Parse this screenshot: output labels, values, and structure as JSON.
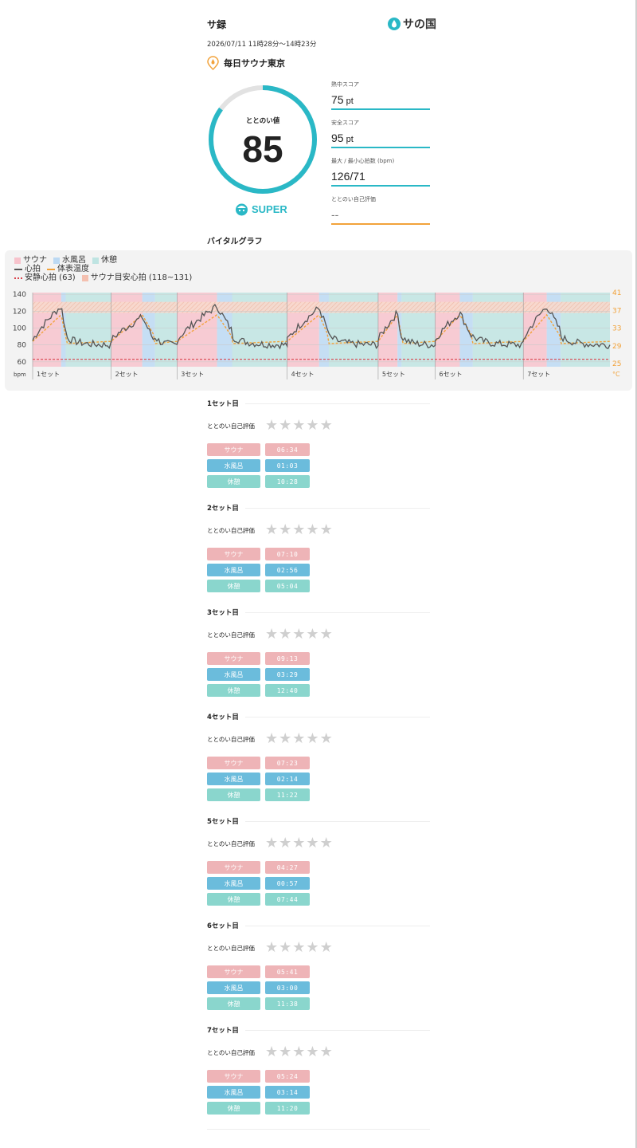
{
  "header": {
    "title": "サ録",
    "brand_name": "サの国",
    "date_range": "2026/07/11 11時28分～14時23分",
    "facility": "毎日サウナ東京"
  },
  "score": {
    "label": "ととのい値",
    "value": "85",
    "fraction": 0.85,
    "rank": "SUPER"
  },
  "metrics": [
    {
      "label": "熱中スコア",
      "value": "75",
      "unit": "pt"
    },
    {
      "label": "安全スコア",
      "value": "95",
      "unit": "pt"
    },
    {
      "label": "最大 / 最小心拍数 (bpm)",
      "value": "126/71",
      "unit": ""
    },
    {
      "label": "ととのい自己評価",
      "value": "--",
      "unit": ""
    }
  ],
  "vital": {
    "section_title": "バイタルグラフ",
    "legend": {
      "sauna": "サウナ",
      "water": "水風呂",
      "rest": "休憩",
      "hr": "心拍",
      "temp": "体表温度",
      "resting": "安静心拍 (63)",
      "safe": "サウナ目安心拍 (118~131)"
    },
    "y_left_ticks": [
      "140",
      "120",
      "100",
      "80",
      "60"
    ],
    "y_left_unit": "bpm",
    "y_right_ticks": [
      "41",
      "37",
      "33",
      "29",
      "25"
    ],
    "y_right_unit": "°C",
    "set_labels": [
      "1セット",
      "2セット",
      "3セット",
      "4セット",
      "5セット",
      "6セット",
      "7セット"
    ],
    "colors": {
      "sauna": "#f7c3cc",
      "water": "#bcd9f3",
      "rest": "#bfe4e2",
      "hr": "#555555",
      "temp": "#f2a23a",
      "resting": "#d9434d",
      "safe": "#f4c0b0"
    }
  },
  "chart_data": {
    "type": "line",
    "resting_hr": 63,
    "safe_range": [
      118,
      131
    ],
    "ylim_left": [
      58,
      142
    ],
    "ylim_right": [
      25,
      41
    ],
    "segments_min": [
      [
        6.57,
        1.05,
        10.47
      ],
      [
        7.17,
        2.93,
        5.07
      ],
      [
        9.22,
        3.48,
        12.67
      ],
      [
        7.38,
        2.23,
        11.37
      ],
      [
        4.45,
        0.95,
        7.73
      ],
      [
        5.68,
        3.0,
        11.63
      ],
      [
        5.4,
        3.23,
        11.33
      ]
    ]
  },
  "sets": [
    {
      "title": "1セット目",
      "rating_label": "ととのい自己評価",
      "sauna_label": "サウナ",
      "sauna": "06:34",
      "water_label": "水風呂",
      "water": "01:03",
      "rest_label": "休憩",
      "rest": "10:28"
    },
    {
      "title": "2セット目",
      "rating_label": "ととのい自己評価",
      "sauna_label": "サウナ",
      "sauna": "07:10",
      "water_label": "水風呂",
      "water": "02:56",
      "rest_label": "休憩",
      "rest": "05:04"
    },
    {
      "title": "3セット目",
      "rating_label": "ととのい自己評価",
      "sauna_label": "サウナ",
      "sauna": "09:13",
      "water_label": "水風呂",
      "water": "03:29",
      "rest_label": "休憩",
      "rest": "12:40"
    },
    {
      "title": "4セット目",
      "rating_label": "ととのい自己評価",
      "sauna_label": "サウナ",
      "sauna": "07:23",
      "water_label": "水風呂",
      "water": "02:14",
      "rest_label": "休憩",
      "rest": "11:22"
    },
    {
      "title": "5セット目",
      "rating_label": "ととのい自己評価",
      "sauna_label": "サウナ",
      "sauna": "04:27",
      "water_label": "水風呂",
      "water": "00:57",
      "rest_label": "休憩",
      "rest": "07:44"
    },
    {
      "title": "6セット目",
      "rating_label": "ととのい自己評価",
      "sauna_label": "サウナ",
      "sauna": "05:41",
      "water_label": "水風呂",
      "water": "03:00",
      "rest_label": "休憩",
      "rest": "11:38"
    },
    {
      "title": "7セット目",
      "rating_label": "ととのい自己評価",
      "sauna_label": "サウナ",
      "sauna": "05:24",
      "water_label": "水風呂",
      "water": "03:14",
      "rest_label": "休憩",
      "rest": "11:20"
    }
  ],
  "star_glyph": "★"
}
